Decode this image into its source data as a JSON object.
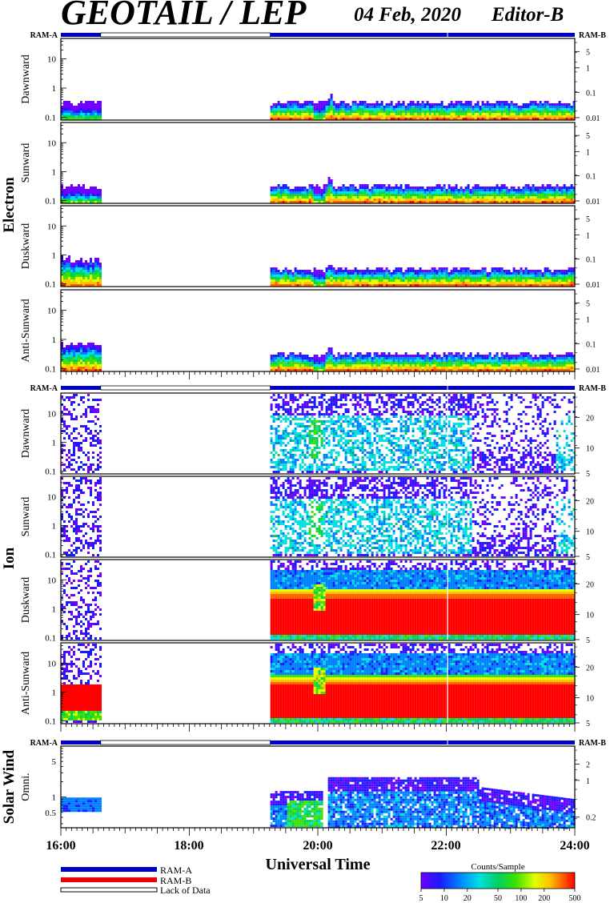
{
  "header": {
    "title": "GEOTAIL / LEP",
    "date": "04 Feb, 2020",
    "editor": "Editor-B"
  },
  "ram_labels": {
    "left": "RAM-A",
    "right": "RAM-B"
  },
  "sections": [
    {
      "name": "Electron",
      "panels": [
        "Dawnward",
        "Sunward",
        "Duskward",
        "Anti-Sunward"
      ]
    },
    {
      "name": "Ion",
      "panels": [
        "Dawnward",
        "Sunward",
        "Duskward",
        "Anti-Sunward"
      ]
    },
    {
      "name": "Solar Wind",
      "panels": [
        "Omni."
      ]
    }
  ],
  "axes": {
    "electron_left_ticks": [
      "10",
      "1",
      "0.1"
    ],
    "electron_right_ticks": [
      "5",
      "1",
      "0.1",
      "0.01"
    ],
    "ion_left_ticks": [
      "10",
      "1",
      "0.1"
    ],
    "ion_right_ticks": [
      "20",
      "10",
      "5"
    ],
    "sw_left_ticks": [
      "5",
      "1",
      "0.5"
    ],
    "sw_right_ticks": [
      "2",
      "1",
      "0.2"
    ],
    "x_ticks": [
      "16:00",
      "18:00",
      "20:00",
      "22:00",
      "24:00"
    ],
    "xlabel": "Universal Time"
  },
  "legend": {
    "items": [
      {
        "label": "RAM-A",
        "color": "#0000cc"
      },
      {
        "label": "RAM-B",
        "color": "#ee0000"
      },
      {
        "label": "Lack of Data",
        "color": "#ffffff"
      }
    ]
  },
  "colorbar": {
    "title": "Counts/Sample",
    "ticks": [
      "5",
      "10",
      "20",
      "50",
      "100",
      "200",
      "500"
    ],
    "colors": [
      "#7000ff",
      "#1a1aff",
      "#0080ff",
      "#00e0e0",
      "#00d060",
      "#40e000",
      "#e0ff00",
      "#ffc000",
      "#ff6000",
      "#ff0000"
    ]
  },
  "chart_data": {
    "type": "heatmap",
    "title": "GEOTAIL / LEP",
    "xlabel": "Universal Time",
    "x_range_hours": [
      16,
      24
    ],
    "data_coverage": [
      {
        "start": "16:00",
        "end": "16:37",
        "mode": "RAM-A"
      },
      {
        "start": "16:37",
        "end": "19:16",
        "mode": "Lack of Data"
      },
      {
        "start": "19:16",
        "end": "24:00",
        "mode": "RAM-A"
      }
    ],
    "panels": [
      {
        "section": "Electron",
        "name": "Dawnward",
        "y_scale": "log",
        "ylim": [
          0.08,
          50
        ]
      },
      {
        "section": "Electron",
        "name": "Sunward",
        "y_scale": "log",
        "ylim": [
          0.08,
          50
        ]
      },
      {
        "section": "Electron",
        "name": "Duskward",
        "y_scale": "log",
        "ylim": [
          0.08,
          50
        ]
      },
      {
        "section": "Electron",
        "name": "Anti-Sunward",
        "y_scale": "log",
        "ylim": [
          0.08,
          50
        ]
      },
      {
        "section": "Ion",
        "name": "Dawnward",
        "y_scale": "log",
        "ylim": [
          0.08,
          50
        ]
      },
      {
        "section": "Ion",
        "name": "Sunward",
        "y_scale": "log",
        "ylim": [
          0.08,
          50
        ]
      },
      {
        "section": "Ion",
        "name": "Duskward",
        "y_scale": "log",
        "ylim": [
          0.08,
          50
        ]
      },
      {
        "section": "Ion",
        "name": "Anti-Sunward",
        "y_scale": "log",
        "ylim": [
          0.08,
          50
        ]
      },
      {
        "section": "Solar Wind",
        "name": "Omni.",
        "y_scale": "log",
        "ylim": [
          0.25,
          10
        ]
      }
    ],
    "colorbar_range": [
      5,
      500
    ]
  }
}
